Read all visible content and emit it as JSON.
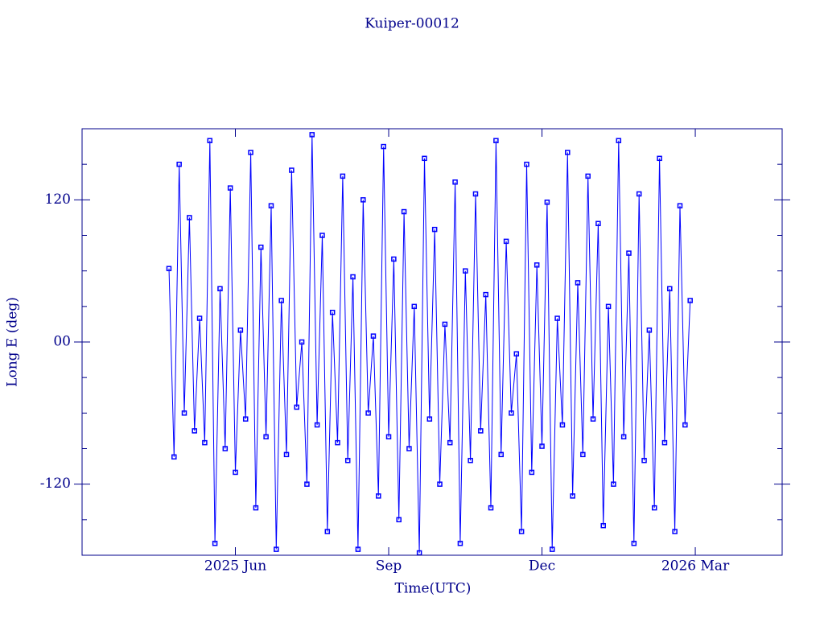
{
  "chart_data": {
    "type": "line",
    "title": "Kuiper-00012",
    "xlabel": "Time(UTC)",
    "ylabel": "Long E (deg)",
    "color": "#0000ff",
    "axis_color": "#00008b",
    "xlim": [
      2.0,
      15.7
    ],
    "xticks": [
      {
        "value": 5,
        "label": "2025 Jun"
      },
      {
        "value": 8,
        "label": "Sep"
      },
      {
        "value": 11,
        "label": "Dec"
      },
      {
        "value": 14,
        "label": "2026 Mar"
      }
    ],
    "ylim": [
      -180,
      180
    ],
    "yticks": [
      -120,
      {
        "value": 0,
        "label": "00"
      },
      120
    ],
    "y_minor_ticks": [
      -150,
      -90,
      -60,
      -30,
      30,
      60,
      90,
      150
    ],
    "x": [
      3.7,
      3.8,
      3.9,
      4.0,
      4.1,
      4.2,
      4.3,
      4.4,
      4.5,
      4.6,
      4.7,
      4.8,
      4.9,
      5.0,
      5.1,
      5.2,
      5.3,
      5.4,
      5.5,
      5.6,
      5.7,
      5.8,
      5.9,
      6.0,
      6.1,
      6.2,
      6.3,
      6.4,
      6.5,
      6.6,
      6.7,
      6.8,
      6.9,
      7.0,
      7.1,
      7.2,
      7.3,
      7.4,
      7.5,
      7.6,
      7.7,
      7.8,
      7.9,
      8.0,
      8.1,
      8.2,
      8.3,
      8.4,
      8.5,
      8.6,
      8.7,
      8.8,
      8.9,
      9.0,
      9.1,
      9.2,
      9.3,
      9.4,
      9.5,
      9.6,
      9.7,
      9.8,
      9.9,
      10.0,
      10.1,
      10.2,
      10.3,
      10.4,
      10.5,
      10.6,
      10.7,
      10.8,
      10.9,
      11.0,
      11.1,
      11.2,
      11.3,
      11.4,
      11.5,
      11.6,
      11.7,
      11.8,
      11.9,
      12.0,
      12.1,
      12.2,
      12.3,
      12.4,
      12.5,
      12.6,
      12.7,
      12.8,
      12.9,
      13.0,
      13.1,
      13.2,
      13.3,
      13.4,
      13.5,
      13.6,
      13.7,
      13.8,
      13.9
    ],
    "values": [
      62,
      -97,
      150,
      -60,
      105,
      -75,
      20,
      -85,
      170,
      -170,
      45,
      -90,
      130,
      -110,
      10,
      -65,
      160,
      -140,
      80,
      -80,
      115,
      -175,
      35,
      -95,
      145,
      -55,
      0,
      -120,
      175,
      -70,
      90,
      -160,
      25,
      -85,
      140,
      -100,
      55,
      -175,
      120,
      -60,
      5,
      -130,
      165,
      -80,
      70,
      -150,
      110,
      -90,
      30,
      -178,
      155,
      -65,
      95,
      -120,
      15,
      -85,
      135,
      -170,
      60,
      -100,
      125,
      -75,
      40,
      -140,
      170,
      -95,
      85,
      -60,
      -10,
      -160,
      150,
      -110,
      65,
      -88,
      118,
      -175,
      20,
      -70,
      160,
      -130,
      50,
      -95,
      140,
      -65,
      100,
      -155,
      30,
      -120,
      170,
      -80,
      75,
      -170,
      125,
      -100,
      10,
      -140,
      155,
      -85,
      45,
      -160,
      115,
      -70,
      35
    ]
  }
}
